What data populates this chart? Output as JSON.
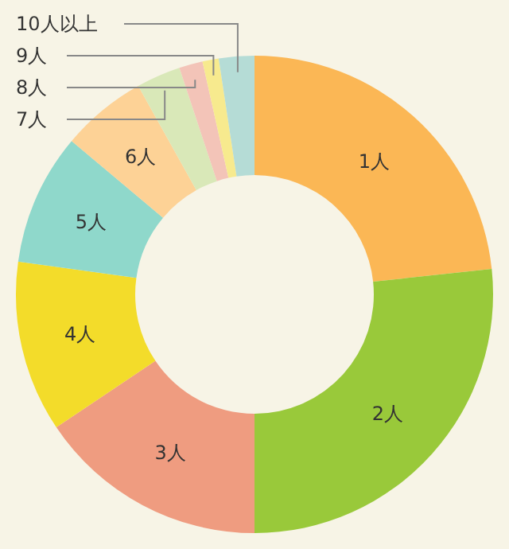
{
  "chart_data": {
    "type": "donut",
    "categories": [
      "1人",
      "2人",
      "3人",
      "4人",
      "5人",
      "6人",
      "7人",
      "8人",
      "9人",
      "10人以上"
    ],
    "values": [
      23.3,
      26.7,
      15.6,
      11.6,
      8.9,
      5.8,
      3.0,
      1.6,
      1.1,
      2.4
    ],
    "colors": [
      "#fbb755",
      "#99c93a",
      "#ef9c80",
      "#f3dc2a",
      "#8fd8cb",
      "#fdd296",
      "#d9e8b8",
      "#f3c4b8",
      "#f7ea8e",
      "#b5dcd6"
    ]
  }
}
